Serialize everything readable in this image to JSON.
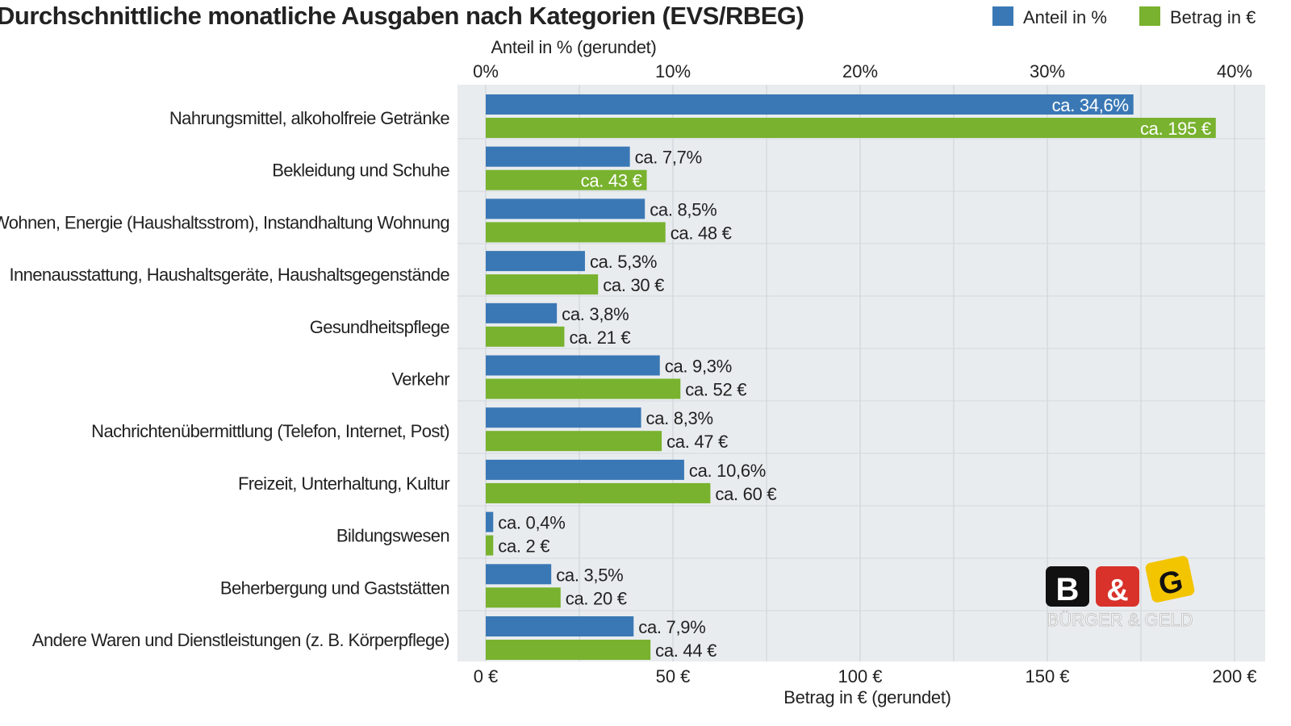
{
  "chart_data": {
    "type": "bar",
    "orientation": "horizontal",
    "title": "Durchschnittliche monatliche Ausgaben nach Kategorien (EVS/RBEG)",
    "categories": [
      "Nahrungsmittel, alkoholfreie Getränke",
      "Bekleidung und Schuhe",
      "Wohnen, Energie (Haushaltsstrom), Instandhaltung Wohnung",
      "Innenausstattung, Haushaltsgeräte, Haushaltsgegenstände",
      "Gesundheitspflege",
      "Verkehr",
      "Nachrichtenübermittlung (Telefon, Internet, Post)",
      "Freizeit, Unterhaltung, Kultur",
      "Bildungswesen",
      "Beherbergung und Gaststätten",
      "Andere Waren und Dienstleistungen (z. B. Körperpflege)"
    ],
    "series": [
      {
        "name": "Anteil in %",
        "color": "#3a78b5",
        "axis": "top",
        "values": [
          34.6,
          7.7,
          8.5,
          5.3,
          3.8,
          9.3,
          8.3,
          10.6,
          0.4,
          3.5,
          7.9
        ],
        "labels": [
          "ca. 34,6%",
          "ca. 7,7%",
          "ca. 8,5%",
          "ca. 5,3%",
          "ca. 3,8%",
          "ca. 9,3%",
          "ca. 8,3%",
          "ca. 10,6%",
          "ca. 0,4%",
          "ca. 3,5%",
          "ca. 7,9%"
        ]
      },
      {
        "name": "Betrag in €",
        "color": "#78b22e",
        "axis": "bottom",
        "values": [
          195,
          43,
          48,
          30,
          21,
          52,
          47,
          60,
          2,
          20,
          44
        ],
        "labels": [
          "ca. 195 €",
          "ca. 43 €",
          "ca. 48 €",
          "ca. 30 €",
          "ca. 21 €",
          "ca. 52 €",
          "ca. 47 €",
          "ca. 60 €",
          "ca. 2 €",
          "ca. 20 €",
          "ca. 44 €"
        ]
      }
    ],
    "top_axis": {
      "label": "Anteil in % (gerundet)",
      "range": [
        0,
        40
      ],
      "ticks": [
        "0%",
        "10%",
        "20%",
        "30%",
        "40%"
      ]
    },
    "bottom_axis": {
      "label": "Betrag in € (gerundet)",
      "range": [
        0,
        200
      ],
      "ticks": [
        "0 €",
        "50 €",
        "100 €",
        "150 €",
        "200 €"
      ]
    },
    "grid": true,
    "legend": "top-right"
  },
  "logo": {
    "letters": [
      "B",
      "&",
      "G"
    ],
    "text": "BÜRGER & GELD"
  }
}
